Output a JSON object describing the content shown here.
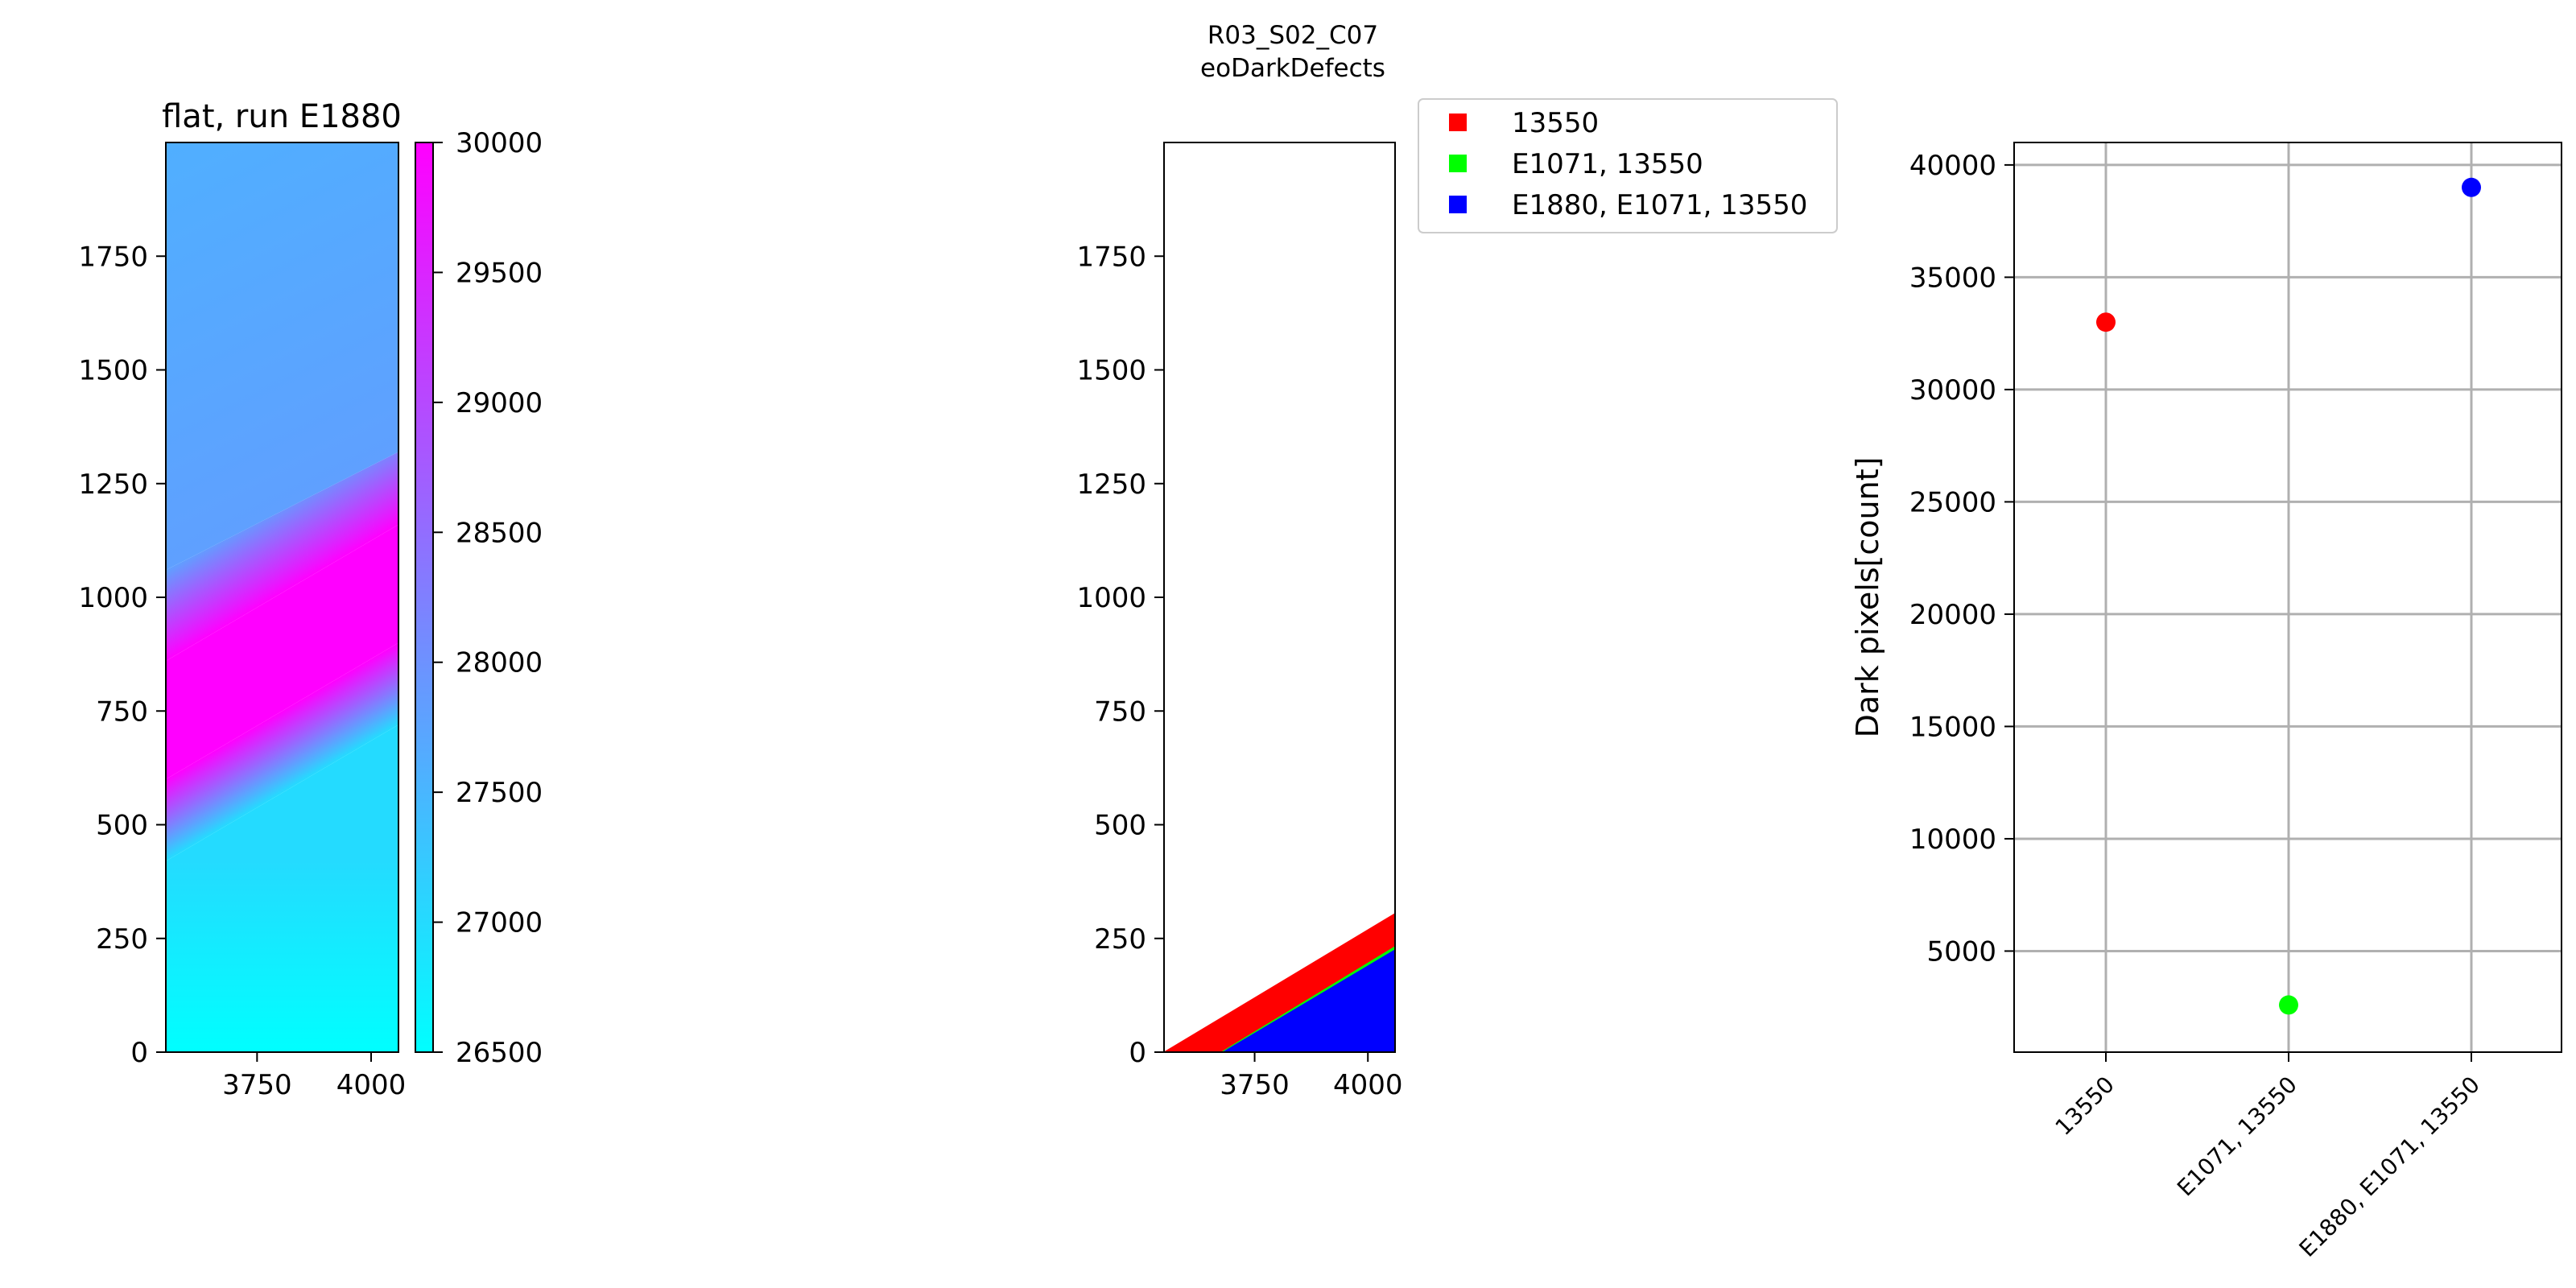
{
  "figure": {
    "title_line1": "R03_S02_C07",
    "title_line2": "eoDarkDefects"
  },
  "chart_data": [
    {
      "type": "heatmap",
      "title": "flat, run E1880",
      "xlabel": "",
      "ylabel": "",
      "xlim": [
        3550,
        4060
      ],
      "ylim": [
        0,
        2000
      ],
      "xticks": [
        3750,
        4000
      ],
      "yticks": [
        0,
        250,
        500,
        750,
        1000,
        1250,
        1500,
        1750
      ],
      "colormap": "cool",
      "colorbar": {
        "range": [
          26500,
          30000
        ],
        "ticks": [
          26500,
          27000,
          27500,
          28000,
          28500,
          29000,
          29500,
          30000
        ],
        "colors": [
          "#00ffff",
          "#ff00ff"
        ]
      },
      "description_bands": [
        {
          "value": 26500,
          "y_at_left": 0,
          "y_at_right": 0
        },
        {
          "value": 27000,
          "y_at_left": 420,
          "y_at_right": 720
        },
        {
          "value": 30000,
          "y_at_left": 600,
          "y_at_right": 900
        },
        {
          "value": 30000,
          "y_at_left": 860,
          "y_at_right": 1160
        },
        {
          "value": 27800,
          "y_at_left": 1060,
          "y_at_right": 1320
        },
        {
          "value": 27600,
          "y_at_left": 2000,
          "y_at_right": 2000
        }
      ]
    },
    {
      "type": "area",
      "title": "",
      "xlim": [
        3550,
        4060
      ],
      "ylim": [
        0,
        2000
      ],
      "xticks": [
        3750,
        4000
      ],
      "yticks": [
        0,
        250,
        500,
        750,
        1000,
        1250,
        1500,
        1750
      ],
      "legend_position": "outside-upper-right",
      "series": [
        {
          "name": "13550",
          "color": "#ff0000",
          "x": [
            3550,
            4060
          ],
          "y_top": [
            0,
            305
          ]
        },
        {
          "name": "E1071, 13550",
          "color": "#00ff00",
          "x": [
            3680,
            4060
          ],
          "y_top": [
            0,
            230
          ]
        },
        {
          "name": "E1880, E1071, 13550",
          "color": "#0000ff",
          "x": [
            3680,
            4060
          ],
          "y_top": [
            0,
            225
          ]
        }
      ]
    },
    {
      "type": "scatter",
      "title": "",
      "xlabel": "",
      "ylabel": "Dark pixels[count]",
      "ylim": [
        500,
        41000
      ],
      "yticks": [
        5000,
        10000,
        15000,
        20000,
        25000,
        30000,
        35000,
        40000
      ],
      "grid": true,
      "categories": [
        "13550",
        "E1071, 13550",
        "E1880, E1071, 13550"
      ],
      "values": [
        33000,
        2600,
        39000
      ],
      "colors": [
        "#ff0000",
        "#00ff00",
        "#0000ff"
      ]
    }
  ]
}
